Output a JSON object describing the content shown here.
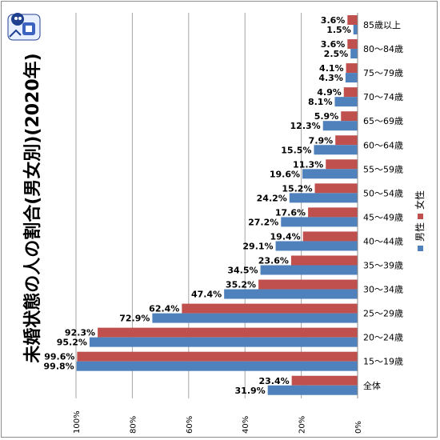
{
  "chart_data": {
    "type": "bar",
    "orientation": "horizontal",
    "title": "未婚状態の人の割合(男女別)(2020年)",
    "categories": [
      "85歳以上",
      "80〜84歳",
      "75〜79歳",
      "70〜74歳",
      "65〜69歳",
      "60〜64歳",
      "55〜59歳",
      "50〜54歳",
      "45〜49歳",
      "40〜44歳",
      "35〜39歳",
      "30〜34歳",
      "25〜29歳",
      "20〜24歳",
      "15〜19歳",
      "全体"
    ],
    "series": [
      {
        "name": "女性",
        "color": "#c0504d",
        "values": [
          3.6,
          3.6,
          4.1,
          4.9,
          5.9,
          7.9,
          11.3,
          15.2,
          17.6,
          19.4,
          23.6,
          35.2,
          62.4,
          92.3,
          99.6,
          23.4
        ]
      },
      {
        "name": "男性",
        "color": "#4f81bd",
        "values": [
          1.5,
          2.5,
          4.3,
          8.1,
          12.3,
          15.5,
          19.6,
          24.2,
          27.2,
          29.1,
          34.5,
          47.4,
          72.9,
          95.2,
          99.8,
          31.9
        ]
      }
    ],
    "value_labels": {
      "女性": [
        "3.6%",
        "3.6%",
        "4.1%",
        "4.9%",
        "5.9%",
        "7.9%",
        "11.3%",
        "15.2%",
        "17.6%",
        "19.4%",
        "23.6%",
        "35.2%",
        "62.4%",
        "92.3%",
        "99.6%",
        "23.4%"
      ],
      "男性": [
        "1.5%",
        "2.5%",
        "4.3%",
        "8.1%",
        "12.3%",
        "15.5%",
        "19.6%",
        "24.2%",
        "27.2%",
        "29.1%",
        "34.5%",
        "47.4%",
        "72.9%",
        "95.2%",
        "99.8%",
        "31.9%"
      ]
    },
    "xlim": [
      0,
      100
    ],
    "x_reversed": true,
    "x_ticks": [
      0,
      20,
      40,
      60,
      80,
      100
    ],
    "x_tick_labels": [
      "0%",
      "20%",
      "40%",
      "60%",
      "80%",
      "100%"
    ],
    "grid": true,
    "legend_position": "right",
    "legend": [
      "男性",
      "女性"
    ]
  },
  "logo_icon": "mascot-logo-icon"
}
